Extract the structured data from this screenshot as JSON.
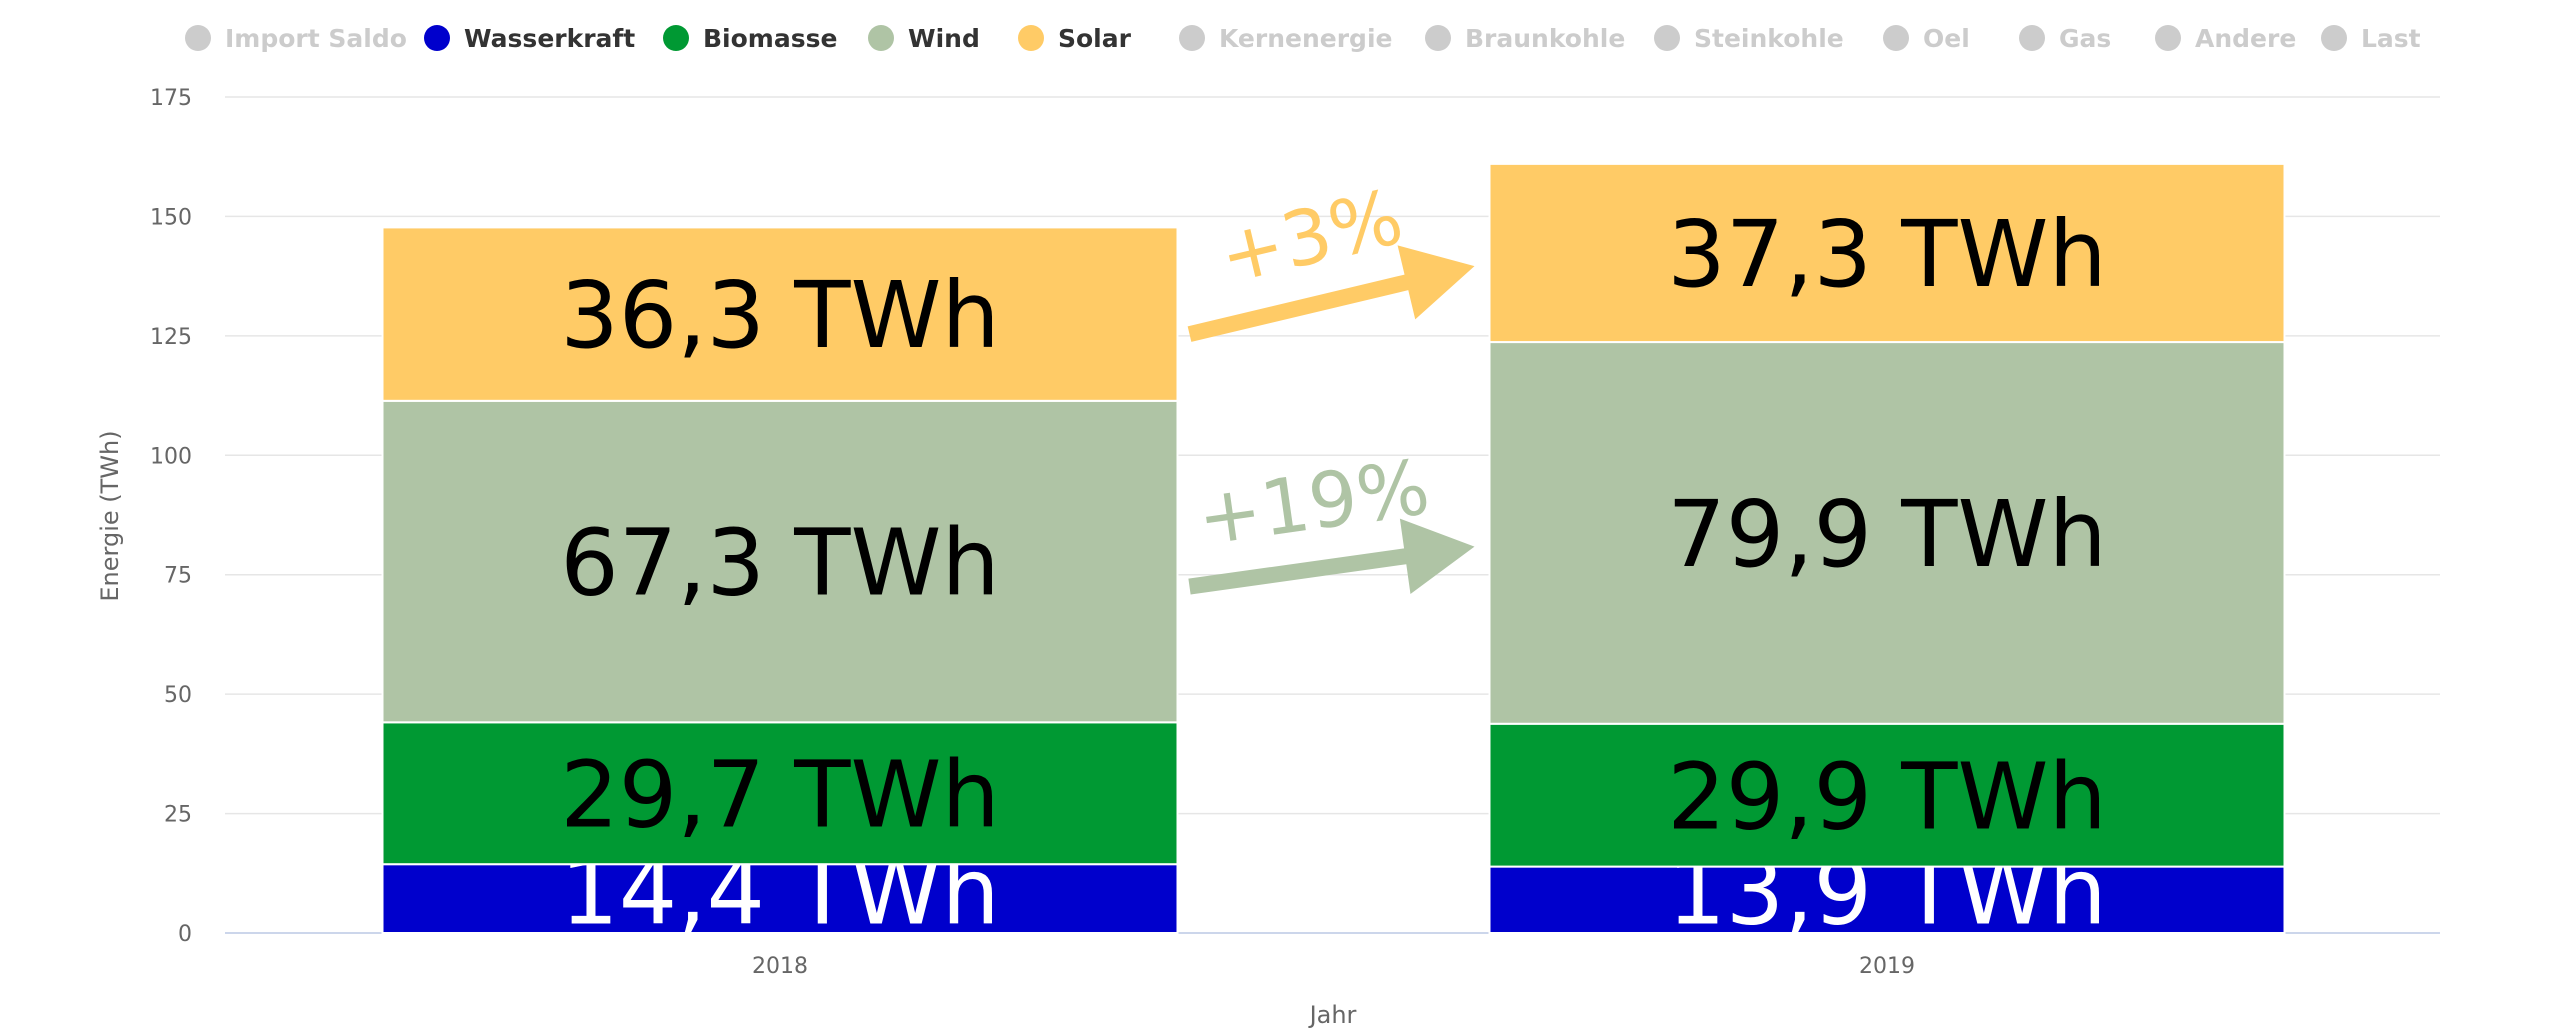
{
  "chart_data": {
    "type": "bar",
    "stacked": true,
    "categories": [
      "2018",
      "2019"
    ],
    "xlabel": "Jahr",
    "ylabel": "Energie (TWh)",
    "ylim": [
      0,
      175
    ],
    "yticks": [
      0,
      25,
      50,
      75,
      100,
      125,
      150,
      175
    ],
    "grid": true,
    "legend_placement": "top",
    "legend": [
      {
        "name": "Import Saldo",
        "color": "#cccccc",
        "active": false
      },
      {
        "name": "Wasserkraft",
        "color": "#0000cc",
        "active": true
      },
      {
        "name": "Biomasse",
        "color": "#009933",
        "active": true
      },
      {
        "name": "Wind",
        "color": "#afc4a5",
        "active": true
      },
      {
        "name": "Solar",
        "color": "#ffcb66",
        "active": true
      },
      {
        "name": "Kernenergie",
        "color": "#cccccc",
        "active": false
      },
      {
        "name": "Braunkohle",
        "color": "#cccccc",
        "active": false
      },
      {
        "name": "Steinkohle",
        "color": "#cccccc",
        "active": false
      },
      {
        "name": "Oel",
        "color": "#cccccc",
        "active": false
      },
      {
        "name": "Gas",
        "color": "#cccccc",
        "active": false
      },
      {
        "name": "Andere",
        "color": "#cccccc",
        "active": false
      },
      {
        "name": "Last",
        "color": "#cccccc",
        "active": false
      }
    ],
    "series": [
      {
        "name": "Wasserkraft",
        "color": "#0000cc",
        "values": [
          14.4,
          13.9
        ],
        "labels": [
          "14,4 TWh",
          "13,9 TWh"
        ],
        "label_color": "#ffffff"
      },
      {
        "name": "Biomasse",
        "color": "#009933",
        "values": [
          29.7,
          29.9
        ],
        "labels": [
          "29,7 TWh",
          "29,9 TWh"
        ],
        "label_color": "#000000"
      },
      {
        "name": "Wind",
        "color": "#afc4a5",
        "values": [
          67.3,
          79.9
        ],
        "labels": [
          "67,3 TWh",
          "79,9 TWh"
        ],
        "label_color": "#000000"
      },
      {
        "name": "Solar",
        "color": "#ffcb66",
        "values": [
          36.3,
          37.3
        ],
        "labels": [
          "36,3 TWh",
          "37,3 TWh"
        ],
        "label_color": "#000000"
      }
    ],
    "annotations": [
      {
        "series": "Solar",
        "text": "+3%",
        "color": "#ffcb66"
      },
      {
        "series": "Wind",
        "text": "+19%",
        "color": "#afc4a5"
      }
    ]
  }
}
